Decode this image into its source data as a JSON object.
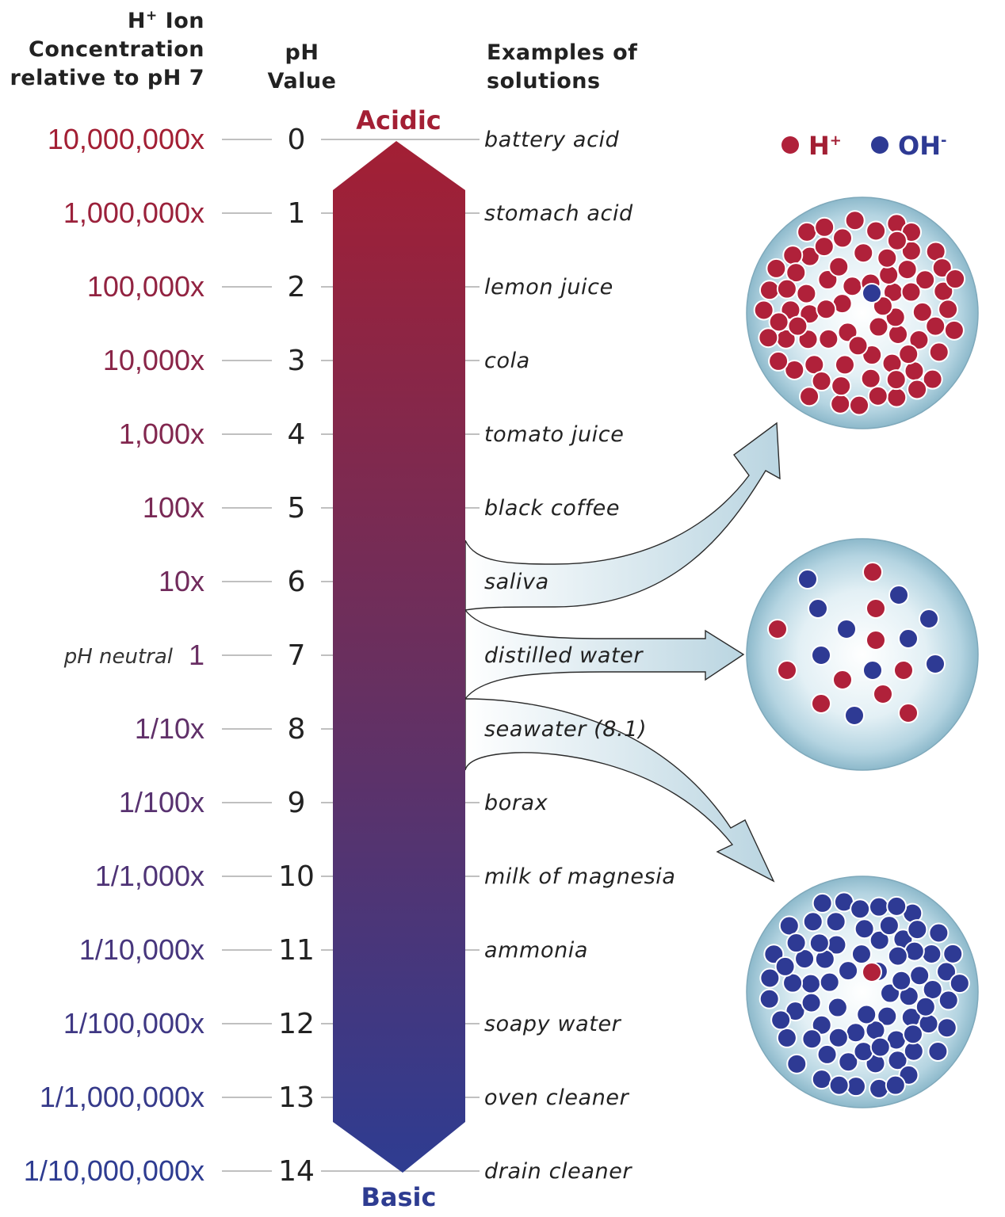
{
  "headers": {
    "concentration": [
      "H",
      "+",
      " Ion",
      "Concentration",
      "relative to pH 7"
    ],
    "ph": [
      "pH",
      "Value"
    ],
    "examples": [
      "Examples of",
      "solutions"
    ]
  },
  "ends": {
    "acidic": "Acidic",
    "basic": "Basic"
  },
  "neutral_label": "pH neutral",
  "rows": [
    {
      "conc": "10,000,000x",
      "ph": "0",
      "example": "battery acid"
    },
    {
      "conc": "1,000,000x",
      "ph": "1",
      "example": "stomach acid"
    },
    {
      "conc": "100,000x",
      "ph": "2",
      "example": "lemon juice"
    },
    {
      "conc": "10,000x",
      "ph": "3",
      "example": "cola"
    },
    {
      "conc": "1,000x",
      "ph": "4",
      "example": "tomato juice"
    },
    {
      "conc": "100x",
      "ph": "5",
      "example": "black coffee"
    },
    {
      "conc": "10x",
      "ph": "6",
      "example": "saliva"
    },
    {
      "conc": "1",
      "ph": "7",
      "example": "distilled water"
    },
    {
      "conc": "1/10x",
      "ph": "8",
      "example": "seawater (8.1)"
    },
    {
      "conc": "1/100x",
      "ph": "9",
      "example": "borax"
    },
    {
      "conc": "1/1,000x",
      "ph": "10",
      "example": "milk of magnesia"
    },
    {
      "conc": "1/10,000x",
      "ph": "11",
      "example": "ammonia"
    },
    {
      "conc": "1/100,000x",
      "ph": "12",
      "example": "soapy water"
    },
    {
      "conc": "1/1,000,000x",
      "ph": "13",
      "example": "oven cleaner"
    },
    {
      "conc": "1/10,000,000x",
      "ph": "14",
      "example": "drain cleaner"
    }
  ],
  "legend": {
    "h": {
      "base": "H",
      "sup": "+"
    },
    "oh": {
      "base": "OH",
      "sup": "-"
    }
  },
  "colors": {
    "acid": "#A31F34",
    "base": "#2E3C91",
    "ion_h": "#B0213A",
    "ion_oh": "#2E3A94",
    "arrow_fill": "#C4DCE6",
    "sphere": "#9DC6D6"
  }
}
